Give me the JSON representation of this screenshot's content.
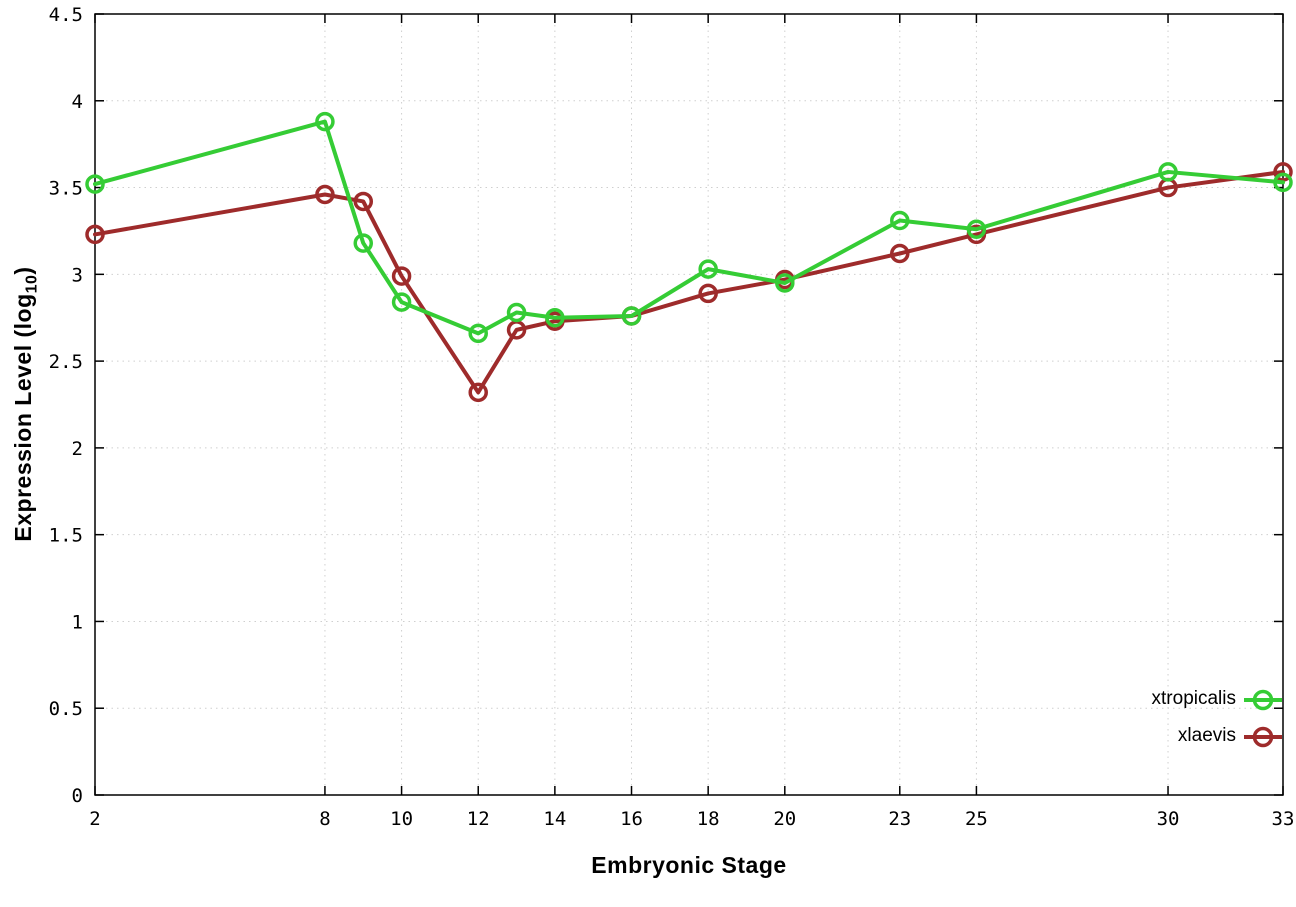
{
  "chart_data": {
    "type": "line",
    "title": "",
    "xlabel": "Embryonic Stage",
    "ylabel": {
      "prefix": "Expression Level (log",
      "sub": "10",
      "suffix": ")"
    },
    "xlim": [
      2,
      33
    ],
    "ylim": [
      0,
      4.5
    ],
    "grid": true,
    "legend_position": "bottom-right",
    "background": "#ffffff",
    "x": [
      2,
      8,
      9,
      10,
      12,
      13,
      14,
      16,
      18,
      20,
      23,
      25,
      30,
      33
    ],
    "xticks": [
      2,
      8,
      10,
      12,
      14,
      16,
      18,
      20,
      23,
      25,
      30,
      33
    ],
    "ytick_values": [
      0,
      0.5,
      1,
      1.5,
      2,
      2.5,
      3,
      3.5,
      4,
      4.5
    ],
    "ytick_labels": [
      "0",
      "0.5",
      "1",
      "1.5",
      "2",
      "2.5",
      "3",
      "3.5",
      "4",
      "4.5"
    ],
    "series": [
      {
        "name": "xtropicalis",
        "color": "#35cc35",
        "marker": "open-circle",
        "values": [
          3.52,
          3.88,
          3.18,
          2.84,
          2.66,
          2.78,
          2.75,
          2.76,
          3.03,
          2.95,
          3.31,
          3.26,
          3.59,
          3.53
        ]
      },
      {
        "name": "xlaevis",
        "color": "#9e2b2b",
        "marker": "open-circle",
        "values": [
          3.23,
          3.46,
          3.42,
          2.99,
          2.32,
          2.68,
          2.73,
          2.76,
          2.89,
          2.97,
          3.12,
          3.23,
          3.5,
          3.59
        ]
      }
    ]
  }
}
